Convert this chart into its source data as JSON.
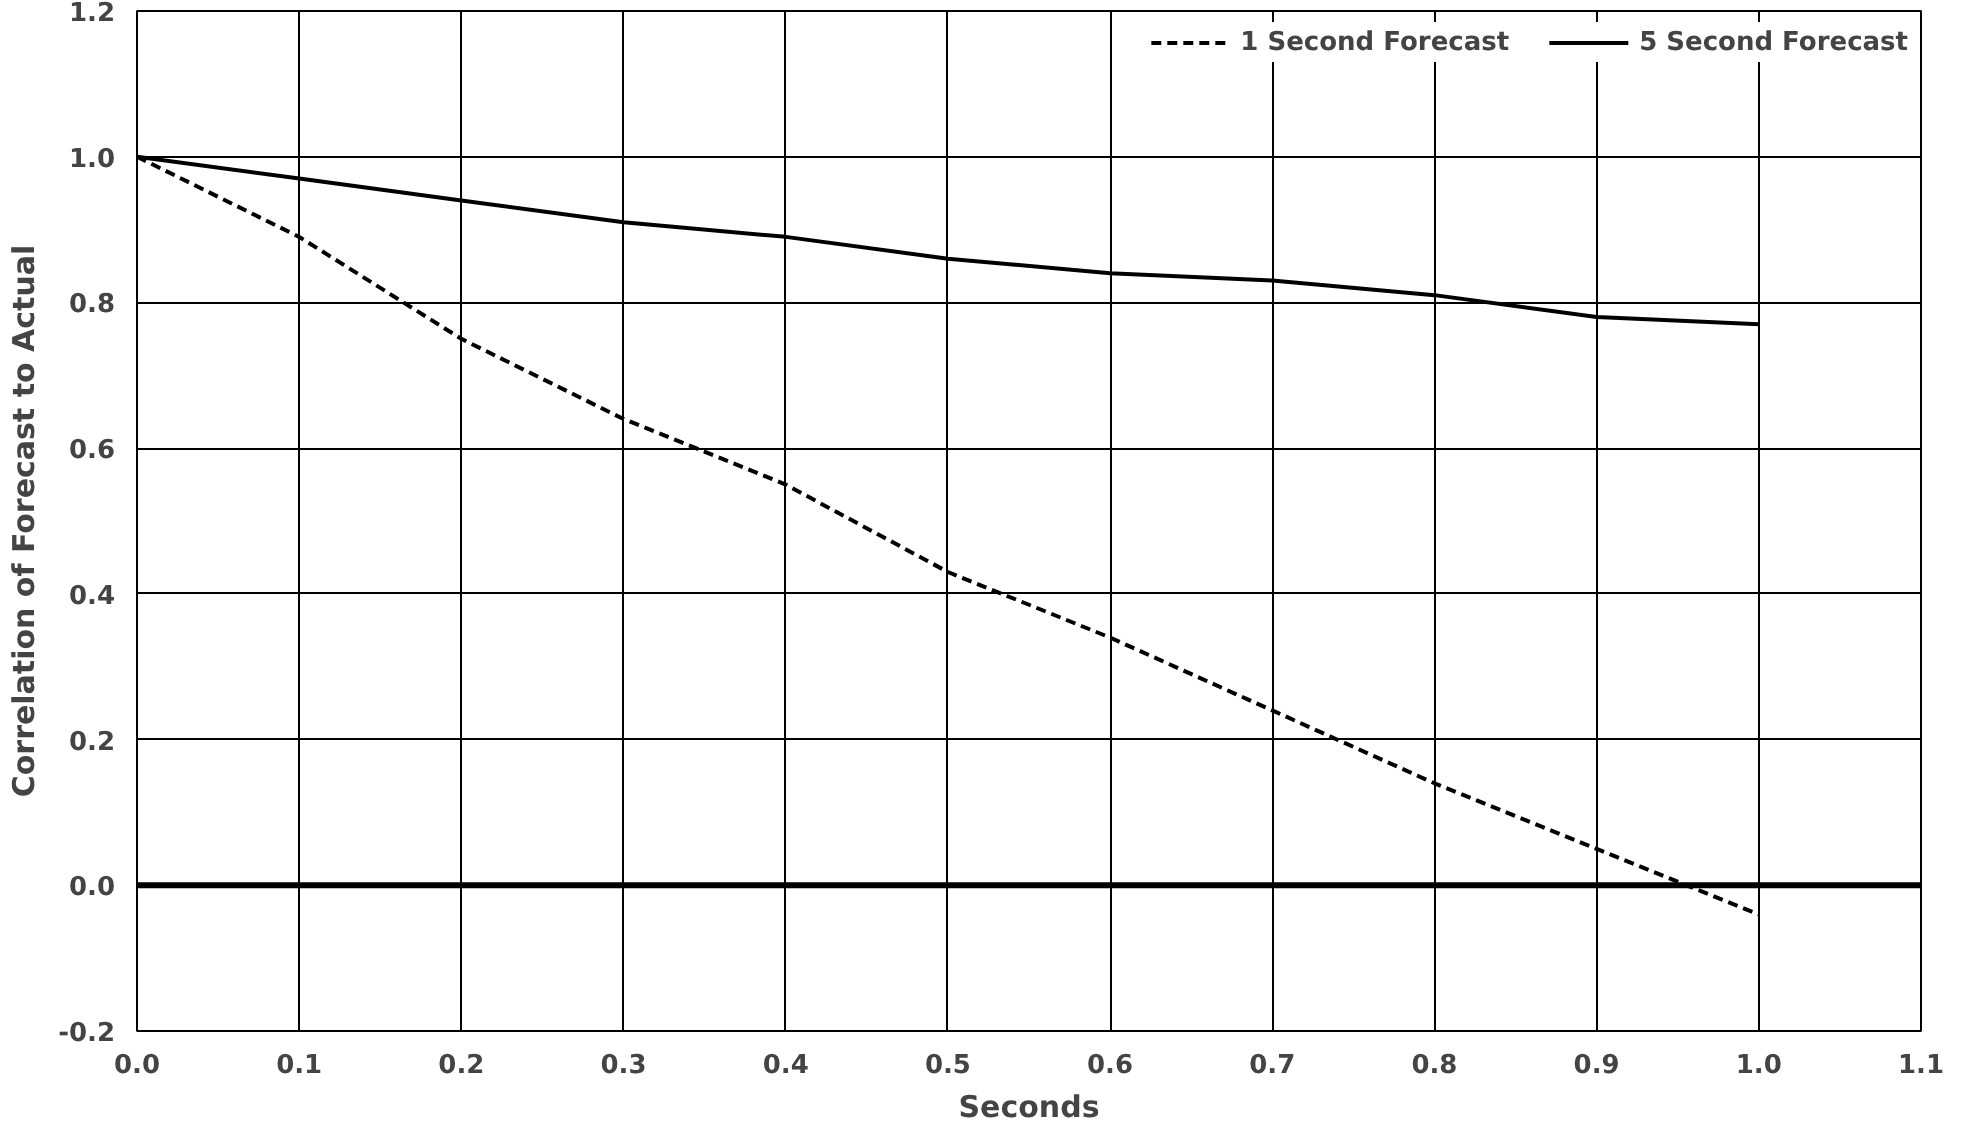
{
  "chart_data": {
    "type": "line",
    "xlabel": "Seconds",
    "ylabel": "Correlation of Forecast to Actual",
    "x": [
      0.0,
      0.1,
      0.2,
      0.3,
      0.4,
      0.5,
      0.6,
      0.7,
      0.8,
      0.9,
      1.0
    ],
    "series": [
      {
        "name": "1 Second Forecast",
        "color": "#000000",
        "line_style": "dashed",
        "values": [
          1.0,
          0.89,
          0.75,
          0.64,
          0.55,
          0.43,
          0.34,
          0.24,
          0.14,
          0.05,
          -0.04
        ]
      },
      {
        "name": "5 Second Forecast",
        "color": "#000000",
        "line_style": "solid",
        "values": [
          1.0,
          0.97,
          0.94,
          0.91,
          0.89,
          0.86,
          0.84,
          0.83,
          0.81,
          0.78,
          0.77
        ]
      }
    ],
    "xlim": [
      0.0,
      1.1
    ],
    "xticks": [
      {
        "value": 0,
        "label": "0.0"
      },
      0.1,
      0.2,
      0.3,
      0.4,
      0.5,
      0.6,
      0.7,
      0.8,
      0.9,
      {
        "value": 1,
        "label": "1.0"
      },
      1.1
    ],
    "ylim": [
      -0.2,
      1.2
    ],
    "yticks": [
      -0.2,
      {
        "value": 0,
        "label": "0.0"
      },
      0.2,
      0.4,
      0.6,
      0.8,
      {
        "value": 1,
        "label": "1.0"
      },
      1.2
    ],
    "ref_lines": [
      {
        "axis": "y",
        "value": 0,
        "color": "#000000"
      }
    ],
    "grid": true,
    "legend": "top right",
    "marker": "none"
  }
}
